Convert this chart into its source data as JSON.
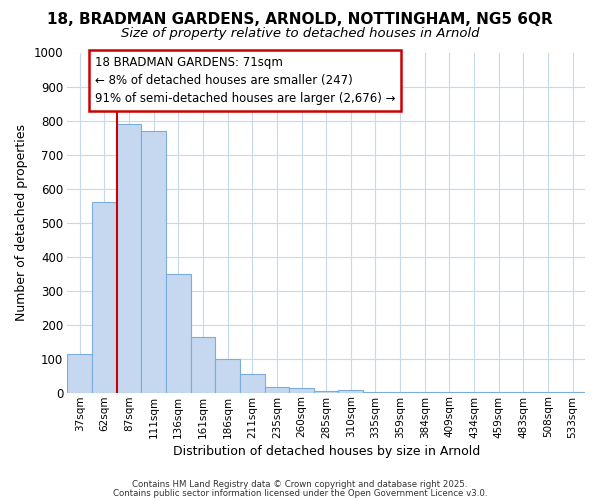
{
  "title_line1": "18, BRADMAN GARDENS, ARNOLD, NOTTINGHAM, NG5 6QR",
  "title_line2": "Size of property relative to detached houses in Arnold",
  "xlabel": "Distribution of detached houses by size in Arnold",
  "ylabel": "Number of detached properties",
  "categories": [
    "37sqm",
    "62sqm",
    "87sqm",
    "111sqm",
    "136sqm",
    "161sqm",
    "186sqm",
    "211sqm",
    "235sqm",
    "260sqm",
    "285sqm",
    "310sqm",
    "335sqm",
    "359sqm",
    "384sqm",
    "409sqm",
    "434sqm",
    "459sqm",
    "483sqm",
    "508sqm",
    "533sqm"
  ],
  "values": [
    115,
    560,
    790,
    770,
    350,
    165,
    100,
    55,
    18,
    13,
    5,
    8,
    2,
    2,
    1,
    2,
    1,
    1,
    1,
    2,
    1
  ],
  "bar_color": "#c5d8f0",
  "bar_edge_color": "#7aaddb",
  "red_line_x": 1.5,
  "ylim": [
    0,
    1000
  ],
  "yticks": [
    0,
    100,
    200,
    300,
    400,
    500,
    600,
    700,
    800,
    900,
    1000
  ],
  "annotation_text": "18 BRADMAN GARDENS: 71sqm\n← 8% of detached houses are smaller (247)\n91% of semi-detached houses are larger (2,676) →",
  "annotation_box_facecolor": "#ffffff",
  "annotation_box_edgecolor": "#cc0000",
  "footer_line1": "Contains HM Land Registry data © Crown copyright and database right 2025.",
  "footer_line2": "Contains public sector information licensed under the Open Government Licence v3.0.",
  "background_color": "#ffffff",
  "plot_background_color": "#ffffff",
  "grid_color": "#c8d8f0"
}
